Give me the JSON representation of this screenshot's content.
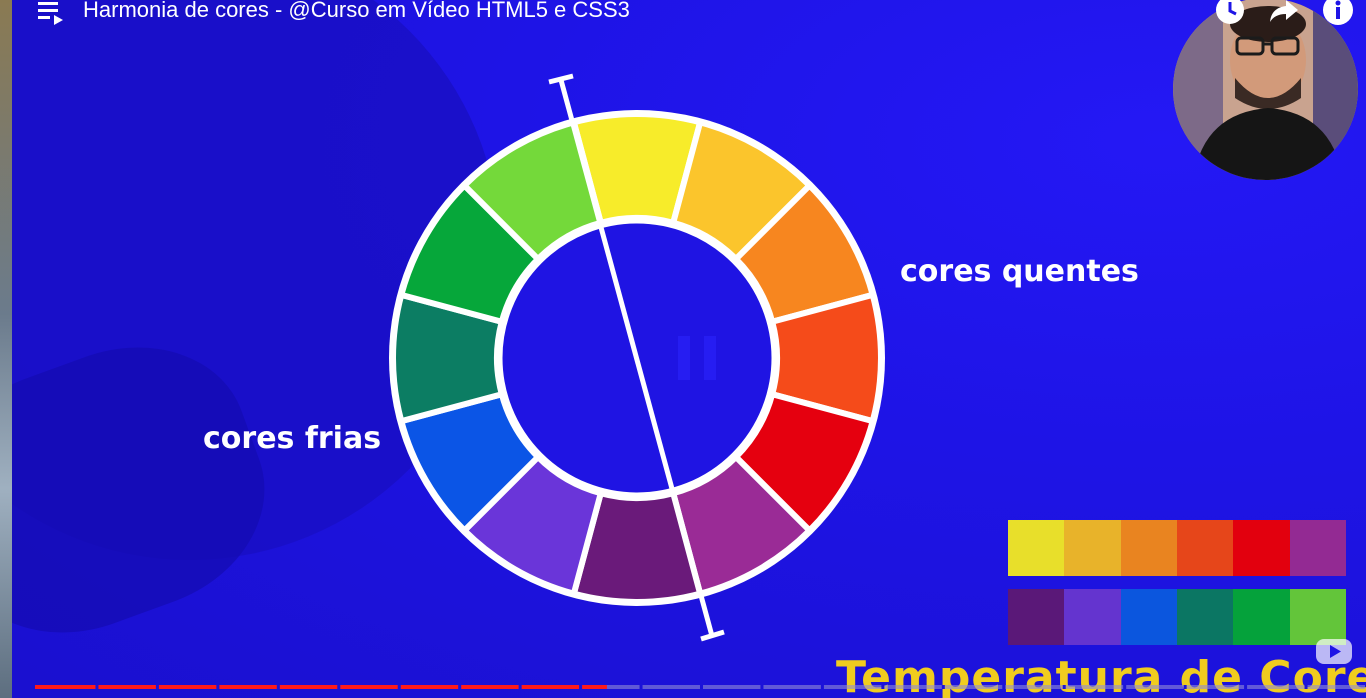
{
  "header": {
    "title": "Harmonia de cores - @Curso em Vídeo HTML5 e CSS3",
    "icons": [
      "playlist-queue-icon",
      "clock-icon",
      "share-icon",
      "info-icon"
    ]
  },
  "video": {
    "labels": {
      "warm": "cores quentes",
      "cold": "cores frias"
    },
    "bottom_title": "Temperatura de Cores",
    "wheel_colors": [
      "#f7ec2a",
      "#fbc52c",
      "#f7861f",
      "#f54b1a",
      "#e5000f",
      "#9a2b96",
      "#6a1a7a",
      "#6a35d9",
      "#0b55e6",
      "#0c7d63",
      "#06a73a",
      "#74d93a"
    ],
    "warm_palette": [
      "#e8df2a",
      "#e8b32a",
      "#e98420",
      "#e6461a",
      "#e2000e",
      "#932a93"
    ],
    "cold_palette": [
      "#5a1878",
      "#6434cf",
      "#0b56de",
      "#0b7663",
      "#05a23b",
      "#63c53a"
    ],
    "background_color": "#1e14e6",
    "accent_title_color": "#f0cc1e"
  },
  "player": {
    "progress_fraction": 0.43
  }
}
